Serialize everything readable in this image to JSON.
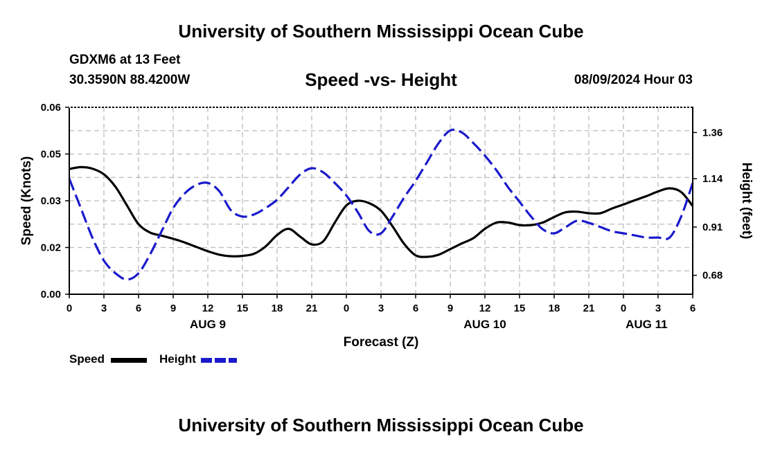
{
  "header": {
    "title": "University of Southern Mississippi Ocean Cube",
    "station": "GDXM6 at 13 Feet",
    "coordinates": "30.3590N  88.4200W",
    "subtitle": "Speed -vs- Height",
    "datetime": "08/09/2024 Hour 03"
  },
  "footer": {
    "title": "University of Southern Mississippi Ocean Cube"
  },
  "legend": {
    "speed_label": "Speed",
    "height_label": "Height"
  },
  "colors": {
    "speed": "#000000",
    "height": "#1a1acc",
    "grid": "#bbbbbb"
  },
  "chart_data": {
    "type": "line",
    "xlabel": "Forecast (Z)",
    "ylabel_left": "Speed (Knots)",
    "ylabel_right": "Height (feet)",
    "x_hours_from_start": [
      0,
      54
    ],
    "x_tick_labels": [
      "0",
      "3",
      "6",
      "9",
      "12",
      "15",
      "18",
      "21",
      "0",
      "3",
      "6",
      "9",
      "12",
      "15",
      "18",
      "21",
      "0",
      "3",
      "6"
    ],
    "date_labels": [
      {
        "label": "AUG 9",
        "hour": 12
      },
      {
        "label": "AUG 10",
        "hour": 36
      },
      {
        "label": "AUG 11",
        "hour": 50
      }
    ],
    "ylim_left": [
      0,
      0.06
    ],
    "ylim_right": [
      0.59,
      1.48
    ],
    "y_left_ticks": [
      "0.00",
      "0.02",
      "0.03",
      "0.05",
      "0.06"
    ],
    "y_left_tick_values": [
      0,
      0.015,
      0.03,
      0.045,
      0.06
    ],
    "y_right_ticks": [
      "0.68",
      "0.91",
      "1.14",
      "1.36"
    ],
    "y_right_tick_values": [
      0.68,
      0.91,
      1.14,
      1.36
    ],
    "grid": true,
    "series": [
      {
        "name": "Speed",
        "axis": "left",
        "style": "solid",
        "x": [
          0,
          1,
          2,
          3,
          4,
          5,
          6,
          7,
          8,
          9,
          10,
          11,
          12,
          13,
          14,
          15,
          16,
          17,
          18,
          19,
          20,
          21,
          22,
          23,
          24,
          25,
          26,
          27,
          28,
          29,
          30,
          31,
          32,
          33,
          34,
          35,
          36,
          37,
          38,
          39,
          40,
          41,
          42,
          43,
          44,
          45,
          46,
          47,
          48,
          49,
          50,
          51,
          52,
          53,
          54
        ],
        "values": [
          0.0402,
          0.0408,
          0.0403,
          0.0385,
          0.0345,
          0.0285,
          0.0225,
          0.0198,
          0.0188,
          0.0178,
          0.0166,
          0.0152,
          0.0138,
          0.0127,
          0.0122,
          0.0123,
          0.013,
          0.0153,
          0.019,
          0.021,
          0.0185,
          0.016,
          0.017,
          0.023,
          0.0285,
          0.03,
          0.0292,
          0.0268,
          0.0218,
          0.0162,
          0.0125,
          0.012,
          0.0127,
          0.0145,
          0.0163,
          0.018,
          0.021,
          0.023,
          0.023,
          0.0222,
          0.0222,
          0.023,
          0.0248,
          0.0263,
          0.0265,
          0.026,
          0.026,
          0.0275,
          0.0288,
          0.0302,
          0.0315,
          0.033,
          0.034,
          0.0328,
          0.0283
        ]
      },
      {
        "name": "Height",
        "axis": "right",
        "style": "dashed",
        "x": [
          0,
          1,
          2,
          3,
          4,
          5,
          6,
          7,
          8,
          9,
          10,
          11,
          12,
          13,
          14,
          15,
          16,
          17,
          18,
          19,
          20,
          21,
          22,
          23,
          24,
          25,
          26,
          27,
          28,
          29,
          30,
          31,
          32,
          33,
          34,
          35,
          36,
          37,
          38,
          39,
          40,
          41,
          42,
          43,
          44,
          45,
          46,
          47,
          48,
          49,
          50,
          51,
          52,
          53,
          54
        ],
        "values": [
          1.14,
          1.0,
          0.86,
          0.75,
          0.69,
          0.66,
          0.69,
          0.78,
          0.89,
          1.0,
          1.07,
          1.11,
          1.12,
          1.08,
          0.99,
          0.96,
          0.97,
          1.0,
          1.04,
          1.1,
          1.16,
          1.19,
          1.17,
          1.12,
          1.06,
          0.98,
          0.89,
          0.88,
          0.96,
          1.05,
          1.13,
          1.22,
          1.31,
          1.37,
          1.36,
          1.31,
          1.25,
          1.18,
          1.1,
          1.03,
          0.96,
          0.9,
          0.88,
          0.91,
          0.94,
          0.93,
          0.91,
          0.89,
          0.88,
          0.87,
          0.86,
          0.86,
          0.86,
          0.96,
          1.12
        ]
      }
    ]
  }
}
